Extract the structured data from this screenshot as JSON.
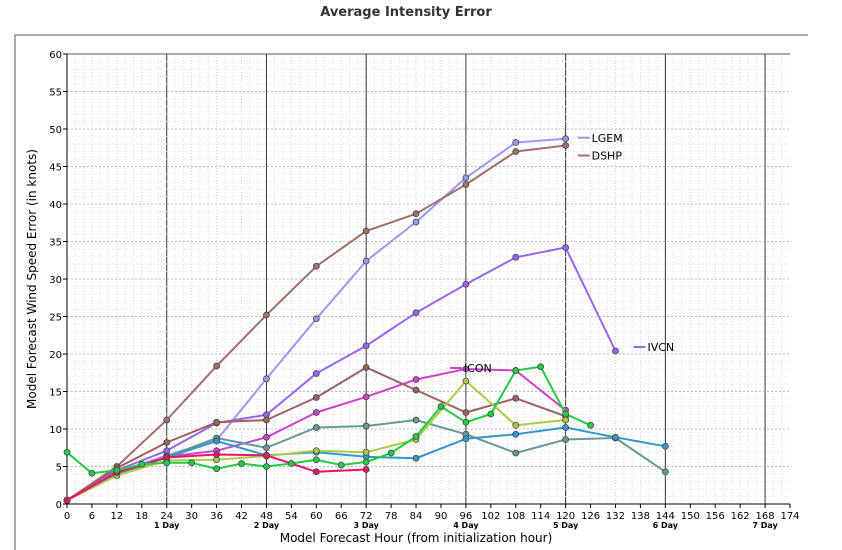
{
  "chart_data": {
    "type": "line",
    "title": "Average Intensity Error",
    "xlabel": "Model Forecast Hour (from initialization hour)",
    "ylabel": "Model Forecast Wind Speed Error (in knots)",
    "xlim": [
      0,
      174
    ],
    "ylim": [
      0,
      60
    ],
    "x_ticks": [
      0,
      6,
      12,
      18,
      24,
      30,
      36,
      42,
      48,
      54,
      60,
      66,
      72,
      78,
      84,
      90,
      96,
      102,
      108,
      114,
      120,
      126,
      132,
      138,
      144,
      150,
      156,
      162,
      168,
      174
    ],
    "y_ticks": [
      0,
      5,
      10,
      15,
      20,
      25,
      30,
      35,
      40,
      45,
      50,
      55,
      60
    ],
    "day_labels": [
      {
        "x": 24,
        "label": "1 Day"
      },
      {
        "x": 48,
        "label": "2 Day"
      },
      {
        "x": 72,
        "label": "3 Day"
      },
      {
        "x": 96,
        "label": "4 Day"
      },
      {
        "x": 120,
        "label": "5 Day"
      },
      {
        "x": 144,
        "label": "6 Day"
      },
      {
        "x": 168,
        "label": "7 Day"
      }
    ],
    "grid": true,
    "series": [
      {
        "name": "LGEM",
        "color": "#9999ee",
        "labeled": true,
        "x": [
          0,
          12,
          24,
          36,
          48,
          60,
          72,
          84,
          96,
          108,
          120
        ],
        "y": [
          0.5,
          4.2,
          6.5,
          8.5,
          16.7,
          24.7,
          32.4,
          37.6,
          43.5,
          48.2,
          48.7
        ]
      },
      {
        "name": "DSHP",
        "color": "#a0706a",
        "labeled": true,
        "x": [
          0,
          12,
          24,
          36,
          48,
          60,
          72,
          84,
          96,
          108,
          120
        ],
        "y": [
          0.5,
          5.0,
          11.2,
          18.4,
          25.2,
          31.7,
          36.4,
          38.7,
          42.6,
          47.0,
          47.8
        ]
      },
      {
        "name": "IVCN",
        "color": "#9966ee",
        "labeled": true,
        "x": [
          0,
          12,
          24,
          36,
          48,
          60,
          72,
          84,
          96,
          108,
          120,
          132
        ],
        "y": [
          0.5,
          4.5,
          7.1,
          10.8,
          11.9,
          17.4,
          21.1,
          25.5,
          29.3,
          32.9,
          34.2,
          20.4
        ]
      },
      {
        "name": "ICON",
        "color": "#cc44cc",
        "labeled": true,
        "x": [
          0,
          12,
          24,
          36,
          48,
          60,
          72,
          84,
          96,
          108,
          120
        ],
        "y": [
          0.5,
          4.0,
          6.3,
          7.1,
          8.9,
          12.2,
          14.3,
          16.6,
          18.0,
          17.8,
          12.5
        ]
      },
      {
        "color": "#a06060",
        "labeled": false,
        "x": [
          0,
          12,
          24,
          36,
          48,
          60,
          72,
          84,
          96,
          108,
          120
        ],
        "y": [
          0.5,
          4.8,
          8.2,
          10.9,
          11.2,
          14.2,
          18.2,
          15.2,
          12.2,
          14.1,
          11.7
        ]
      },
      {
        "color": "#669999",
        "labeled": false,
        "x": [
          0,
          12,
          24,
          36,
          48,
          60,
          72,
          84,
          96,
          108,
          120,
          132,
          144
        ],
        "y": [
          0.5,
          4.1,
          6.3,
          8.8,
          7.5,
          10.2,
          10.4,
          11.2,
          9.3,
          6.8,
          8.6,
          8.8,
          4.3
        ]
      },
      {
        "color": "#3399cc",
        "labeled": false,
        "x": [
          0,
          12,
          24,
          36,
          48,
          60,
          72,
          84,
          96,
          108,
          120,
          132,
          144
        ],
        "y": [
          0.5,
          4.0,
          6.2,
          8.4,
          6.5,
          6.9,
          6.3,
          6.1,
          8.7,
          9.3,
          10.2,
          8.9,
          7.7
        ]
      },
      {
        "color": "#aacc44",
        "labeled": false,
        "x": [
          0,
          12,
          24,
          36,
          48,
          60,
          72,
          84,
          96,
          108,
          120
        ],
        "y": [
          0.5,
          3.8,
          5.8,
          5.9,
          6.4,
          7.1,
          6.9,
          8.6,
          16.4,
          10.5,
          11.2
        ]
      },
      {
        "color": "#ee1166",
        "labeled": false,
        "x": [
          0,
          12,
          24,
          36,
          48,
          60,
          72
        ],
        "y": [
          0.5,
          4.2,
          6.2,
          6.6,
          6.5,
          4.3,
          4.6
        ]
      },
      {
        "color": "#22cc44",
        "labeled": false,
        "x": [
          0,
          6,
          12,
          18,
          24,
          30,
          36,
          42,
          48,
          54,
          60,
          66,
          72,
          78,
          84,
          90,
          96,
          102,
          108,
          114,
          120,
          126
        ],
        "y": [
          6.9,
          4.1,
          4.5,
          5.3,
          5.5,
          5.5,
          4.7,
          5.4,
          5.0,
          5.4,
          5.9,
          5.2,
          5.6,
          6.8,
          9.0,
          13.0,
          10.9,
          12.0,
          17.8,
          18.3,
          12.0,
          10.5
        ]
      }
    ]
  }
}
